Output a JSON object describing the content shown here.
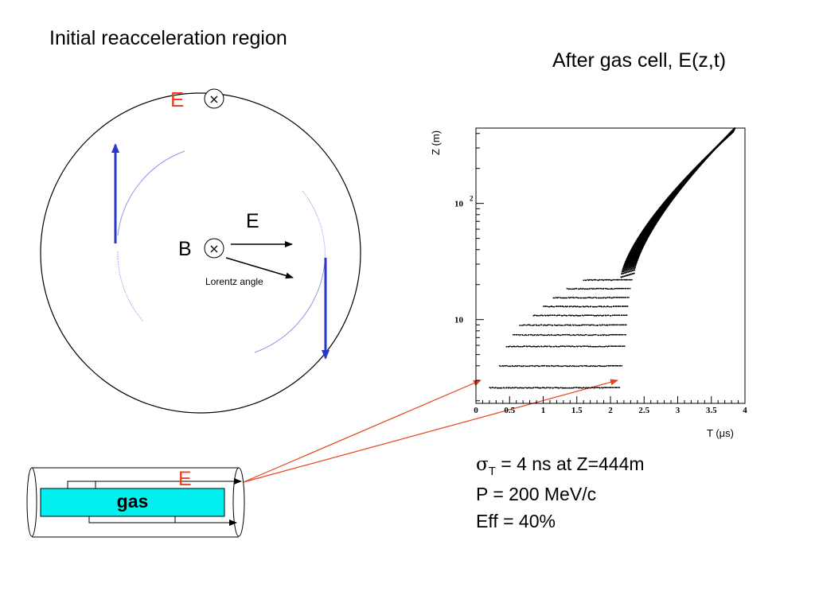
{
  "titles": {
    "left": "Initial reacceleration region",
    "right": "After gas cell, E(z,t)"
  },
  "labels": {
    "e_top": "E",
    "e_mid": "E",
    "b_mid": "B",
    "lorentz": "Lorentz angle",
    "e_gas": "E",
    "gas": "gas",
    "cross_symbol": "×"
  },
  "stats": {
    "sigma_symbol": "σ",
    "sigma_sub": "T",
    "sigma_rest": " = 4 ns at Z=444m",
    "momentum": "P = 200 MeV/c",
    "efficiency": "Eff = 40%"
  },
  "colors": {
    "accent_red": "#e8431c",
    "arrow_blue": "#2a36c8",
    "trajectory": "#8f96e0",
    "gas_fill": "#00f0f0"
  },
  "chart_data": {
    "type": "scatter",
    "xlabel": "T (μs)",
    "ylabel": "Z (m)",
    "yscale": "log",
    "xlim": [
      0,
      4
    ],
    "ylim": [
      1.9,
      445
    ],
    "x_ticks": [
      "0",
      "0.5",
      "1",
      "1.5",
      "2",
      "2.5",
      "3",
      "3.5",
      "4"
    ],
    "y_ticks": [
      {
        "base": "10",
        "exp": "",
        "value": 10
      },
      {
        "base": "10",
        "exp": "2",
        "value": 100
      }
    ],
    "grid": false,
    "bands": [
      {
        "z": 2.6,
        "t_start": 0.2,
        "t_end": 2.15
      },
      {
        "z": 4.0,
        "t_start": 0.35,
        "t_end": 2.18
      },
      {
        "z": 5.9,
        "t_start": 0.45,
        "t_end": 2.22
      },
      {
        "z": 7.4,
        "t_start": 0.55,
        "t_end": 2.24
      },
      {
        "z": 9.0,
        "t_start": 0.65,
        "t_end": 2.25
      },
      {
        "z": 10.9,
        "t_start": 0.85,
        "t_end": 2.26
      },
      {
        "z": 13.0,
        "t_start": 1.0,
        "t_end": 2.27
      },
      {
        "z": 15.5,
        "t_start": 1.15,
        "t_end": 2.28
      },
      {
        "z": 18.5,
        "t_start": 1.35,
        "t_end": 2.3
      },
      {
        "z": 22.0,
        "t_start": 1.6,
        "t_end": 2.33
      }
    ],
    "tail": {
      "t_start": 2.35,
      "t_end": 3.85,
      "z_start": 25,
      "z_end": 444
    }
  }
}
